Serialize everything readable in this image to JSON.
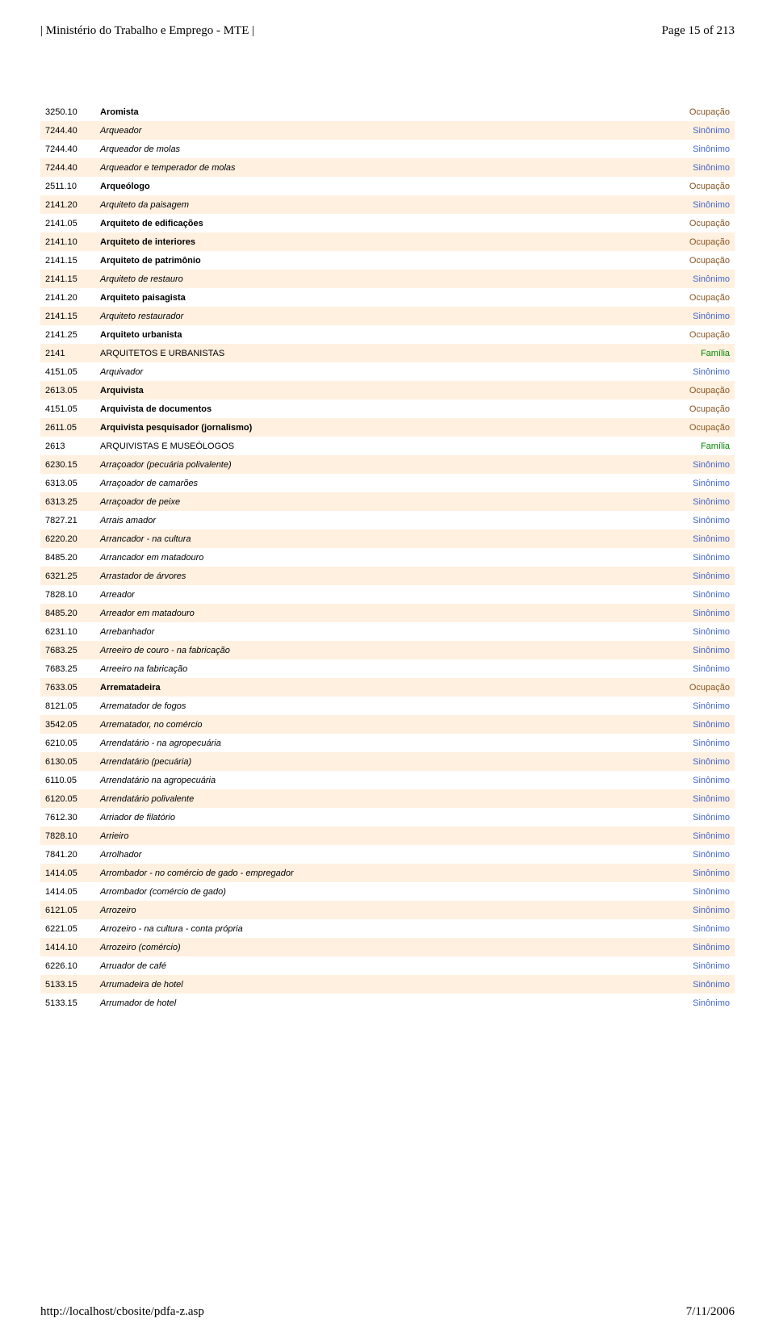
{
  "header": {
    "left": "| Ministério do Trabalho e Emprego - MTE |",
    "right": "Page 15 of 213"
  },
  "footer": {
    "left": "http://localhost/cbosite/pdfa-z.asp",
    "right": "7/11/2006"
  },
  "type_colors": {
    "Ocupação": "#885522",
    "Sinônimo": "#4466cc",
    "Família": "#008800"
  },
  "row_alt_bg": "#fff0e0",
  "rows": [
    {
      "code": "3250.10",
      "desc": "Aromista",
      "type": "Ocupação",
      "style": "bold",
      "alt": false
    },
    {
      "code": "7244.40",
      "desc": "Arqueador",
      "type": "Sinônimo",
      "style": "italic",
      "alt": true
    },
    {
      "code": "7244.40",
      "desc": "Arqueador de molas",
      "type": "Sinônimo",
      "style": "italic",
      "alt": false
    },
    {
      "code": "7244.40",
      "desc": "Arqueador e temperador de molas",
      "type": "Sinônimo",
      "style": "italic",
      "alt": true
    },
    {
      "code": "2511.10",
      "desc": "Arqueólogo",
      "type": "Ocupação",
      "style": "bold",
      "alt": false
    },
    {
      "code": "2141.20",
      "desc": "Arquiteto da paisagem",
      "type": "Sinônimo",
      "style": "italic",
      "alt": true
    },
    {
      "code": "2141.05",
      "desc": "Arquiteto de edificações",
      "type": "Ocupação",
      "style": "bold",
      "alt": false
    },
    {
      "code": "2141.10",
      "desc": "Arquiteto de interiores",
      "type": "Ocupação",
      "style": "bold",
      "alt": true
    },
    {
      "code": "2141.15",
      "desc": "Arquiteto de patrimônio",
      "type": "Ocupação",
      "style": "bold",
      "alt": false
    },
    {
      "code": "2141.15",
      "desc": "Arquiteto de restauro",
      "type": "Sinônimo",
      "style": "italic",
      "alt": true
    },
    {
      "code": "2141.20",
      "desc": "Arquiteto paisagista",
      "type": "Ocupação",
      "style": "bold",
      "alt": false
    },
    {
      "code": "2141.15",
      "desc": "Arquiteto restaurador",
      "type": "Sinônimo",
      "style": "italic",
      "alt": true
    },
    {
      "code": "2141.25",
      "desc": "Arquiteto urbanista",
      "type": "Ocupação",
      "style": "bold",
      "alt": false
    },
    {
      "code": "2141",
      "desc": "ARQUITETOS E URBANISTAS",
      "type": "Família",
      "style": "",
      "alt": true
    },
    {
      "code": "4151.05",
      "desc": "Arquivador",
      "type": "Sinônimo",
      "style": "italic",
      "alt": false
    },
    {
      "code": "2613.05",
      "desc": "Arquivista",
      "type": "Ocupação",
      "style": "bold",
      "alt": true
    },
    {
      "code": "4151.05",
      "desc": "Arquivista de documentos",
      "type": "Ocupação",
      "style": "bold",
      "alt": false
    },
    {
      "code": "2611.05",
      "desc": "Arquivista pesquisador (jornalismo)",
      "type": "Ocupação",
      "style": "bold",
      "alt": true
    },
    {
      "code": "2613",
      "desc": "ARQUIVISTAS E MUSEÓLOGOS",
      "type": "Família",
      "style": "",
      "alt": false
    },
    {
      "code": "6230.15",
      "desc": "Arraçoador (pecuária polivalente)",
      "type": "Sinônimo",
      "style": "italic",
      "alt": true
    },
    {
      "code": "6313.05",
      "desc": "Arraçoador de camarões",
      "type": "Sinônimo",
      "style": "italic",
      "alt": false
    },
    {
      "code": "6313.25",
      "desc": "Arraçoador de peixe",
      "type": "Sinônimo",
      "style": "italic",
      "alt": true
    },
    {
      "code": "7827.21",
      "desc": "Arrais amador",
      "type": "Sinônimo",
      "style": "italic",
      "alt": false
    },
    {
      "code": "6220.20",
      "desc": "Arrancador - na cultura",
      "type": "Sinônimo",
      "style": "italic",
      "alt": true
    },
    {
      "code": "8485.20",
      "desc": "Arrancador em matadouro",
      "type": "Sinônimo",
      "style": "italic",
      "alt": false
    },
    {
      "code": "6321.25",
      "desc": "Arrastador de árvores",
      "type": "Sinônimo",
      "style": "italic",
      "alt": true
    },
    {
      "code": "7828.10",
      "desc": "Arreador",
      "type": "Sinônimo",
      "style": "italic",
      "alt": false
    },
    {
      "code": "8485.20",
      "desc": "Arreador em matadouro",
      "type": "Sinônimo",
      "style": "italic",
      "alt": true
    },
    {
      "code": "6231.10",
      "desc": "Arrebanhador",
      "type": "Sinônimo",
      "style": "italic",
      "alt": false
    },
    {
      "code": "7683.25",
      "desc": "Arreeiro de couro - na fabricação",
      "type": "Sinônimo",
      "style": "italic",
      "alt": true
    },
    {
      "code": "7683.25",
      "desc": "Arreeiro na fabricação",
      "type": "Sinônimo",
      "style": "italic",
      "alt": false
    },
    {
      "code": "7633.05",
      "desc": "Arrematadeira",
      "type": "Ocupação",
      "style": "bold",
      "alt": true
    },
    {
      "code": "8121.05",
      "desc": "Arrematador de fogos",
      "type": "Sinônimo",
      "style": "italic",
      "alt": false
    },
    {
      "code": "3542.05",
      "desc": "Arrematador, no comércio",
      "type": "Sinônimo",
      "style": "italic",
      "alt": true
    },
    {
      "code": "6210.05",
      "desc": "Arrendatário - na agropecuária",
      "type": "Sinônimo",
      "style": "italic",
      "alt": false
    },
    {
      "code": "6130.05",
      "desc": "Arrendatário (pecuária)",
      "type": "Sinônimo",
      "style": "italic",
      "alt": true
    },
    {
      "code": "6110.05",
      "desc": "Arrendatário na agropecuária",
      "type": "Sinônimo",
      "style": "italic",
      "alt": false
    },
    {
      "code": "6120.05",
      "desc": "Arrendatário polivalente",
      "type": "Sinônimo",
      "style": "italic",
      "alt": true
    },
    {
      "code": "7612.30",
      "desc": "Arriador de filatório",
      "type": "Sinônimo",
      "style": "italic",
      "alt": false
    },
    {
      "code": "7828.10",
      "desc": "Arrieiro",
      "type": "Sinônimo",
      "style": "italic",
      "alt": true
    },
    {
      "code": "7841.20",
      "desc": "Arrolhador",
      "type": "Sinônimo",
      "style": "italic",
      "alt": false
    },
    {
      "code": "1414.05",
      "desc": "Arrombador - no comércio de gado - empregador",
      "type": "Sinônimo",
      "style": "italic",
      "alt": true
    },
    {
      "code": "1414.05",
      "desc": "Arrombador (comércio de gado)",
      "type": "Sinônimo",
      "style": "italic",
      "alt": false
    },
    {
      "code": "6121.05",
      "desc": "Arrozeiro",
      "type": "Sinônimo",
      "style": "italic",
      "alt": true
    },
    {
      "code": "6221.05",
      "desc": "Arrozeiro - na cultura - conta própria",
      "type": "Sinônimo",
      "style": "italic",
      "alt": false
    },
    {
      "code": "1414.10",
      "desc": "Arrozeiro (comércio)",
      "type": "Sinônimo",
      "style": "italic",
      "alt": true
    },
    {
      "code": "6226.10",
      "desc": "Arruador de café",
      "type": "Sinônimo",
      "style": "italic",
      "alt": false
    },
    {
      "code": "5133.15",
      "desc": "Arrumadeira de hotel",
      "type": "Sinônimo",
      "style": "italic",
      "alt": true
    },
    {
      "code": "5133.15",
      "desc": "Arrumador de hotel",
      "type": "Sinônimo",
      "style": "italic",
      "alt": false
    }
  ]
}
